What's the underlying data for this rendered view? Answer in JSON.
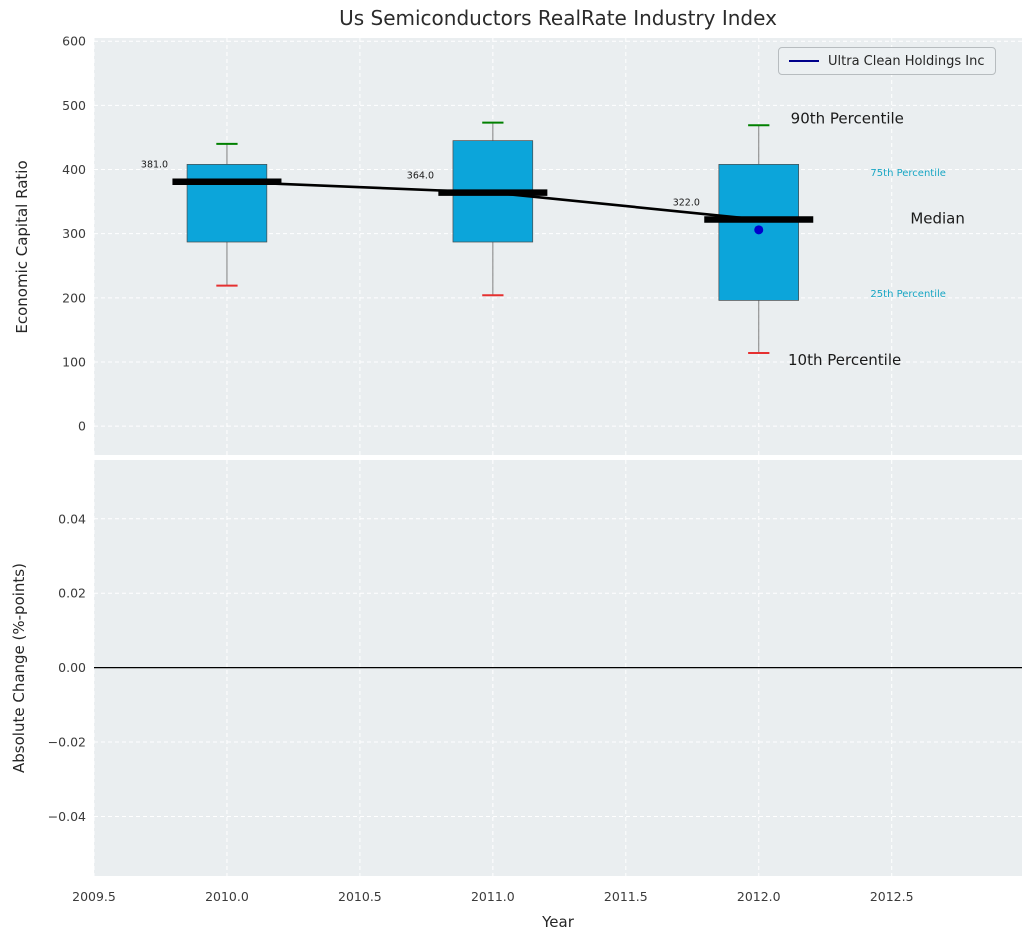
{
  "title": "Us Semiconductors RealRate Industry Index",
  "xlabel": "Year",
  "xlim": [
    2009.5,
    2012.99
  ],
  "xticks": {
    "values": [
      2009.5,
      2010.0,
      2010.5,
      2011.0,
      2011.5,
      2012.0,
      2012.5
    ],
    "labels": [
      "2009.5",
      "2010.0",
      "2010.5",
      "2011.0",
      "2011.5",
      "2012.0",
      "2012.5"
    ]
  },
  "top_plot": {
    "ylabel": "Economic Capital Ratio",
    "ylim": [
      -45,
      605
    ],
    "yticks": {
      "values": [
        0,
        100,
        200,
        300,
        400,
        500,
        600
      ],
      "labels": [
        "0",
        "100",
        "200",
        "300",
        "400",
        "500",
        "600"
      ]
    }
  },
  "bottom_plot": {
    "ylabel": "Absolute Change (%-points)",
    "ylim": [
      -0.056,
      0.0558
    ],
    "yticks": {
      "values": [
        -0.04,
        -0.02,
        0.0,
        0.02,
        0.04
      ],
      "labels": [
        "−0.04",
        "−0.02",
        "0.00",
        "0.02",
        "0.04"
      ]
    },
    "zero_line_value": 0.0
  },
  "legend": {
    "label": "Ultra Clean Holdings Inc"
  },
  "chart_data": {
    "type": "box",
    "title": "Us Semiconductors RealRate Industry Index",
    "xlabel": "Year",
    "top_ylabel": "Economic Capital Ratio",
    "bottom_ylabel": "Absolute Change (%-points)",
    "categories": [
      2010,
      2011,
      2012
    ],
    "boxes": [
      {
        "x": 2010,
        "p10": 219,
        "p25": 287,
        "median": 381,
        "p75": 408,
        "p90": 440
      },
      {
        "x": 2011,
        "p10": 204,
        "p25": 287,
        "median": 364,
        "p75": 445,
        "p90": 473
      },
      {
        "x": 2012,
        "p10": 114,
        "p25": 196,
        "median": 322,
        "p75": 408,
        "p90": 469
      }
    ],
    "median_trend": {
      "x": [
        2010,
        2011,
        2012
      ],
      "y": [
        381,
        364,
        322
      ],
      "labels": [
        "381.0",
        "364.0",
        "322.0"
      ]
    },
    "company_series": {
      "name": "Ultra Clean Holdings Inc",
      "points": [
        {
          "x": 2012,
          "y": 306
        }
      ]
    },
    "percentile_labels": [
      {
        "text": "90th Percentile",
        "x": 2012.12,
        "y": 472,
        "style": "large"
      },
      {
        "text": "75th Percentile",
        "x": 2012.42,
        "y": 390,
        "style": "small"
      },
      {
        "text": "Median",
        "x": 2012.57,
        "y": 316,
        "style": "large"
      },
      {
        "text": "25th Percentile",
        "x": 2012.42,
        "y": 201,
        "style": "small"
      },
      {
        "text": "10th Percentile",
        "x": 2012.11,
        "y": 95,
        "style": "large"
      }
    ],
    "bottom_series_values": []
  },
  "colors": {
    "box_fill": "#0ca5da",
    "box_edge": "#4a4a4a",
    "median": "#000000",
    "trend_line": "#000000",
    "whisker": "#808080",
    "cap_top": "#008000",
    "cap_bottom": "#e53030",
    "company_dot": "#0000cd",
    "legend_line": "#00008b",
    "plot_bg": "#eaeef0",
    "grid": "#ffffff",
    "label_large": "#1a1a1a",
    "label_teal": "#18a6c4",
    "tick_text": "#3b3b3b",
    "zero_line": "#000000"
  }
}
